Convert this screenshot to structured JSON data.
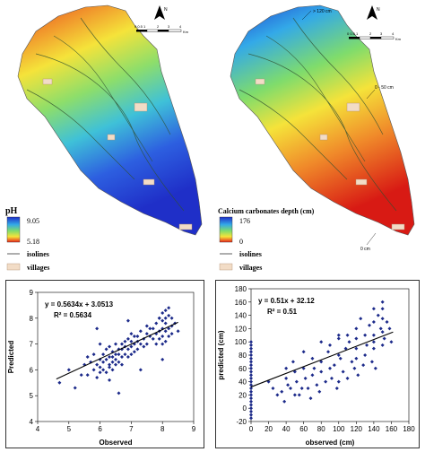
{
  "maps": {
    "left": {
      "legend_title": "pH",
      "scale_max": "9.05",
      "scale_min": "5.18",
      "isolines_label": "isolines",
      "villages_label": "villages",
      "north_label": "N",
      "scale_ticks": [
        "0 0.5 1",
        "2",
        "3",
        "4"
      ],
      "scale_unit": "Km"
    },
    "right": {
      "legend_title": "Calcium carbonates depth (cm)",
      "scale_max": "176",
      "scale_min": "0",
      "isolines_label": "isolines",
      "villages_label": "villages",
      "north_label": "N",
      "scale_ticks": [
        "0 0.5 1",
        "2",
        "3",
        "4"
      ],
      "scale_unit": "Km",
      "annotations": [
        "> 120 cm",
        "0 - 50 cm",
        "0 cm"
      ]
    },
    "colors": {
      "ramp_low": "#e8241a",
      "ramp_mid": "#f5e33a",
      "ramp_mid2": "#7fdc6c",
      "ramp_high2": "#33a9e8",
      "ramp_high": "#1f2fc8",
      "village": "#f2dcc6",
      "isoline": "#3a3a3a"
    }
  },
  "chart_data": [
    {
      "type": "scatter",
      "title": "",
      "xlabel": "Observed",
      "ylabel": "Predicted",
      "xlim": [
        4,
        9
      ],
      "ylim": [
        4,
        9
      ],
      "xticks": [
        4,
        5,
        6,
        7,
        8,
        9
      ],
      "yticks": [
        4,
        5,
        6,
        7,
        8,
        9
      ],
      "equation": "y = 0.5634x + 3.0513",
      "r2": "R² = 0.5634",
      "trendline": {
        "slope": 0.5634,
        "intercept": 3.0513,
        "x_range": [
          4.6,
          8.5
        ]
      },
      "point_color": "#1c2a8a",
      "x": [
        4.7,
        5.0,
        5.2,
        5.4,
        5.5,
        5.6,
        5.6,
        5.7,
        5.8,
        5.8,
        5.9,
        5.9,
        6.0,
        6.0,
        6.0,
        6.1,
        6.1,
        6.1,
        6.2,
        6.2,
        6.2,
        6.3,
        6.3,
        6.3,
        6.3,
        6.4,
        6.4,
        6.4,
        6.4,
        6.5,
        6.5,
        6.5,
        6.5,
        6.6,
        6.6,
        6.6,
        6.7,
        6.7,
        6.7,
        6.7,
        6.8,
        6.8,
        6.8,
        6.9,
        6.9,
        6.9,
        7.0,
        7.0,
        7.0,
        7.0,
        7.1,
        7.1,
        7.1,
        7.2,
        7.2,
        7.2,
        7.3,
        7.3,
        7.4,
        7.4,
        7.5,
        7.5,
        7.6,
        7.6,
        7.7,
        7.7,
        7.8,
        7.8,
        7.8,
        7.9,
        7.9,
        7.9,
        8.0,
        8.0,
        8.0,
        8.0,
        8.0,
        8.1,
        8.1,
        8.1,
        8.1,
        8.1,
        8.2,
        8.2,
        8.2,
        8.2,
        8.3,
        8.3,
        8.3,
        8.4,
        8.5,
        6.0,
        6.3,
        6.9,
        7.3,
        8.0,
        7.5,
        6.6,
        5.9,
        7.9
      ],
      "y": [
        5.5,
        6.0,
        5.3,
        5.8,
        6.2,
        5.8,
        6.5,
        6.3,
        6.0,
        6.6,
        6.2,
        5.7,
        6.1,
        6.4,
        5.9,
        6.6,
        6.3,
        6.0,
        6.4,
        5.9,
        6.8,
        6.5,
        6.1,
        6.2,
        6.9,
        6.3,
        6.7,
        6.0,
        6.5,
        6.6,
        6.2,
        7.0,
        6.4,
        6.8,
        6.3,
        6.6,
        6.5,
        7.0,
        6.2,
        6.8,
        6.6,
        7.1,
        6.9,
        6.8,
        7.2,
        6.5,
        6.9,
        6.6,
        7.1,
        7.4,
        7.0,
        6.7,
        7.3,
        7.1,
        6.8,
        7.3,
        7.0,
        7.5,
        7.2,
        6.9,
        7.4,
        7.0,
        7.3,
        7.6,
        7.2,
        7.6,
        7.4,
        7.8,
        7.0,
        7.5,
        7.2,
        8.0,
        7.6,
        7.3,
        7.9,
        8.2,
        7.0,
        7.5,
        7.8,
        8.3,
        7.1,
        8.0,
        7.6,
        8.1,
        7.3,
        8.4,
        7.7,
        8.0,
        7.4,
        7.8,
        7.5,
        7.0,
        5.6,
        7.9,
        6.0,
        6.4,
        7.7,
        5.1,
        7.6,
        8.0
      ]
    },
    {
      "type": "scatter",
      "title": "",
      "xlabel": "observed (cm)",
      "ylabel": "predicted (cm)",
      "xlim": [
        0,
        180
      ],
      "ylim": [
        -20,
        180
      ],
      "xticks": [
        0,
        20,
        40,
        60,
        80,
        100,
        120,
        140,
        160,
        180
      ],
      "yticks": [
        -20,
        0,
        20,
        40,
        60,
        80,
        100,
        120,
        140,
        160,
        180
      ],
      "equation": "y = 0.51x + 32.12",
      "r2": "R² = 0.51",
      "trendline": {
        "slope": 0.51,
        "intercept": 32.12,
        "x_range": [
          0,
          162
        ]
      },
      "point_color": "#1c2a8a",
      "x": [
        0,
        0,
        0,
        0,
        0,
        0,
        0,
        0,
        0,
        0,
        0,
        0,
        0,
        0,
        0,
        0,
        0,
        0,
        0,
        0,
        0,
        0,
        0,
        0,
        20,
        25,
        30,
        35,
        38,
        40,
        40,
        42,
        45,
        48,
        50,
        50,
        52,
        55,
        58,
        60,
        60,
        62,
        65,
        68,
        70,
        70,
        72,
        75,
        78,
        80,
        80,
        80,
        85,
        88,
        90,
        90,
        92,
        95,
        98,
        100,
        100,
        100,
        100,
        102,
        105,
        108,
        110,
        110,
        112,
        115,
        118,
        120,
        120,
        120,
        120,
        122,
        125,
        128,
        130,
        130,
        132,
        135,
        138,
        140,
        140,
        140,
        140,
        140,
        142,
        145,
        148,
        150,
        150,
        150,
        150,
        150,
        152,
        155,
        158,
        160
      ],
      "y": [
        -15,
        -10,
        -5,
        0,
        5,
        10,
        15,
        20,
        25,
        30,
        35,
        40,
        45,
        50,
        55,
        60,
        65,
        70,
        75,
        80,
        85,
        90,
        95,
        100,
        40,
        30,
        20,
        25,
        10,
        60,
        45,
        35,
        30,
        70,
        20,
        55,
        40,
        20,
        30,
        60,
        85,
        45,
        30,
        15,
        75,
        50,
        60,
        35,
        25,
        100,
        70,
        55,
        40,
        85,
        60,
        95,
        45,
        65,
        30,
        40,
        80,
        105,
        110,
        75,
        55,
        90,
        45,
        110,
        100,
        70,
        60,
        75,
        90,
        120,
        105,
        50,
        135,
        65,
        110,
        80,
        95,
        125,
        70,
        150,
        130,
        100,
        90,
        110,
        60,
        140,
        120,
        160,
        150,
        115,
        135,
        95,
        105,
        130,
        120,
        100
      ]
    }
  ]
}
